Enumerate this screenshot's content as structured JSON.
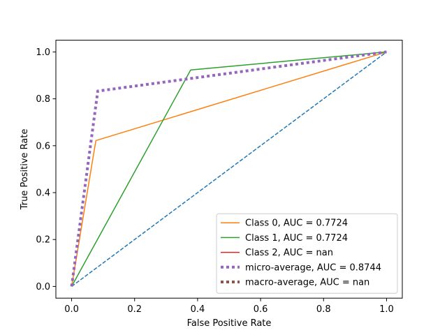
{
  "chart_data": {
    "type": "line",
    "title": "",
    "xlabel": "False Positive Rate",
    "ylabel": "True Positive Rate",
    "xlim": [
      -0.05,
      1.05
    ],
    "ylim": [
      -0.05,
      1.05
    ],
    "xticks": [
      0.0,
      0.2,
      0.4,
      0.6,
      0.8,
      1.0
    ],
    "yticks": [
      0.0,
      0.2,
      0.4,
      0.6,
      0.8,
      1.0
    ],
    "xtick_labels": [
      "0.0",
      "0.2",
      "0.4",
      "0.6",
      "0.8",
      "1.0"
    ],
    "ytick_labels": [
      "0.0",
      "0.2",
      "0.4",
      "0.6",
      "0.8",
      "1.0"
    ],
    "grid": false,
    "legend_position": "bottom-right",
    "chance_line": {
      "x": [
        0,
        1
      ],
      "y": [
        0,
        1
      ],
      "color": "#1f77b4",
      "style": "dashed"
    },
    "series": [
      {
        "name": "Class 0, AUC = 0.7724",
        "color": "#ff7f0e",
        "style": "solid",
        "x": [
          0.0,
          0.077,
          1.0
        ],
        "y": [
          0.0,
          0.622,
          1.0
        ]
      },
      {
        "name": "Class 1, AUC = 0.7724",
        "color": "#2ca02c",
        "style": "solid",
        "x": [
          0.0,
          0.378,
          1.0
        ],
        "y": [
          0.0,
          0.923,
          1.0
        ]
      },
      {
        "name": "Class 2, AUC = nan",
        "color": "#d62728",
        "style": "solid",
        "x": [],
        "y": []
      },
      {
        "name": "micro-average, AUC = 0.8744",
        "color": "#9467bd",
        "style": "dotted",
        "x": [
          0.0,
          0.083,
          1.0
        ],
        "y": [
          0.0,
          0.833,
          1.0
        ]
      },
      {
        "name": "macro-average, AUC = nan",
        "color": "#8c564b",
        "style": "dotted",
        "x": [],
        "y": []
      }
    ]
  }
}
